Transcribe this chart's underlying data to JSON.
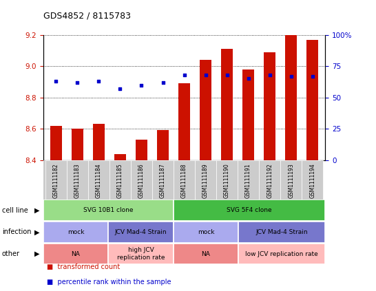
{
  "title": "GDS4852 / 8115783",
  "samples": [
    "GSM1111182",
    "GSM1111183",
    "GSM1111184",
    "GSM1111185",
    "GSM1111186",
    "GSM1111187",
    "GSM1111188",
    "GSM1111189",
    "GSM1111190",
    "GSM1111191",
    "GSM1111192",
    "GSM1111193",
    "GSM1111194"
  ],
  "bar_values": [
    8.62,
    8.6,
    8.63,
    8.44,
    8.53,
    8.59,
    8.89,
    9.04,
    9.11,
    8.98,
    9.09,
    9.2,
    9.17
  ],
  "dot_values": [
    63,
    62,
    63,
    57,
    60,
    62,
    68,
    68,
    68,
    65,
    68,
    67,
    67
  ],
  "ylim": [
    8.4,
    9.2
  ],
  "y2lim": [
    0,
    100
  ],
  "yticks": [
    8.4,
    8.6,
    8.8,
    9.0,
    9.2
  ],
  "y2ticks": [
    0,
    25,
    50,
    75,
    100
  ],
  "bar_color": "#CC1100",
  "dot_color": "#0000CC",
  "bar_bottom": 8.4,
  "annotation_rows": [
    {
      "label": "cell line",
      "groups": [
        {
          "span": [
            0,
            5
          ],
          "text": "SVG 10B1 clone",
          "color": "#99DD88"
        },
        {
          "span": [
            6,
            12
          ],
          "text": "SVG 5F4 clone",
          "color": "#44BB44"
        }
      ]
    },
    {
      "label": "infection",
      "groups": [
        {
          "span": [
            0,
            2
          ],
          "text": "mock",
          "color": "#AAAAEE"
        },
        {
          "span": [
            3,
            5
          ],
          "text": "JCV Mad-4 Strain",
          "color": "#7777CC"
        },
        {
          "span": [
            6,
            8
          ],
          "text": "mock",
          "color": "#AAAAEE"
        },
        {
          "span": [
            9,
            12
          ],
          "text": "JCV Mad-4 Strain",
          "color": "#7777CC"
        }
      ]
    },
    {
      "label": "other",
      "groups": [
        {
          "span": [
            0,
            2
          ],
          "text": "NA",
          "color": "#EE8888"
        },
        {
          "span": [
            3,
            5
          ],
          "text": "high JCV\nreplication rate",
          "color": "#FFBBBB"
        },
        {
          "span": [
            6,
            8
          ],
          "text": "NA",
          "color": "#EE8888"
        },
        {
          "span": [
            9,
            12
          ],
          "text": "low JCV replication rate",
          "color": "#FFBBBB"
        }
      ]
    }
  ],
  "legend_items": [
    {
      "label": "transformed count",
      "color": "#CC1100"
    },
    {
      "label": "percentile rank within the sample",
      "color": "#0000CC"
    }
  ]
}
